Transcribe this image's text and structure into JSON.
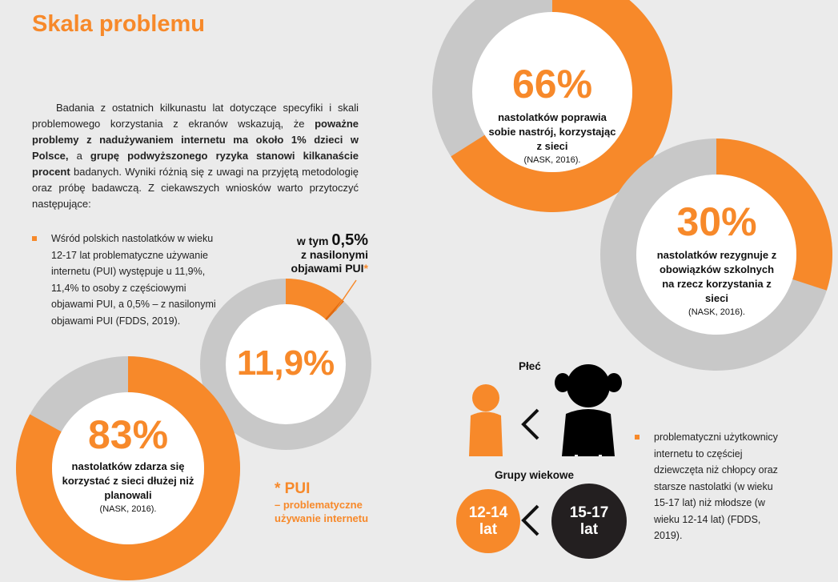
{
  "title": "Skala problemu",
  "intro": [
    "Badania z ostatnich kilkunastu lat dotyczące specyfiki i skali problemowego korzystania z ekranów wskazują, że ",
    "poważne problemy z nadużywaniem internetu ma około 1% dzieci w Polsce,",
    " a ",
    "grupę podwyższonego ryzyka stanowi kilkanaście procent",
    " badanych. Wyniki różnią się z uwagi na przyjętą metodologię oraz próbę badawczą. Z ciekawszych wniosków warto przytoczyć następujące:"
  ],
  "bullet_pui": "Wśród polskich nastolatków w wieku 12-17 lat problematyczne używanie internetu (PUI) występuje u 11,9%, 11,4% to osoby z częściowymi objawami PUI, a 0,5% – z nasilonymi objawami PUI (FDDS, 2019).",
  "donuts": [
    {
      "value": 66,
      "value_label": "66%",
      "text": "nastolatków poprawia sobie nastrój, korzystając z sieci",
      "source": "(NASK, 2016)."
    },
    {
      "value": 30,
      "value_label": "30%",
      "text": "nastolatków rezygnuje z obowiązków szkolnych na rzecz korzystania z sieci",
      "source": "(NASK, 2016)."
    },
    {
      "value": 11.9,
      "value_label": "11,9%"
    },
    {
      "value": 83,
      "value_label": "83%",
      "text": "nastolatków zdarza się korzystać z sieci dłużej niż planowali",
      "source": "(NASK, 2016)."
    }
  ],
  "severe": {
    "prefix": "w tym",
    "value": 0.5,
    "value_label": "0,5%",
    "text": "z nasilonymi objawami PUI",
    "star": "*"
  },
  "footnote": {
    "title": "* PUI",
    "text": "– problematyczne używanie internetu"
  },
  "gender_label": "Płeć",
  "age_label": "Grupy wiekowe",
  "age_groups": [
    "12-14 lat",
    "15-17 lat"
  ],
  "bullet_gender": "problematyczni użytkownicy internetu to częściej dziewczęta niż chłopcy oraz starsze nastolatki (w wieku 15-17 lat) niż młodsze (w wieku 12-14 lat) (FDDS, 2019)."
}
